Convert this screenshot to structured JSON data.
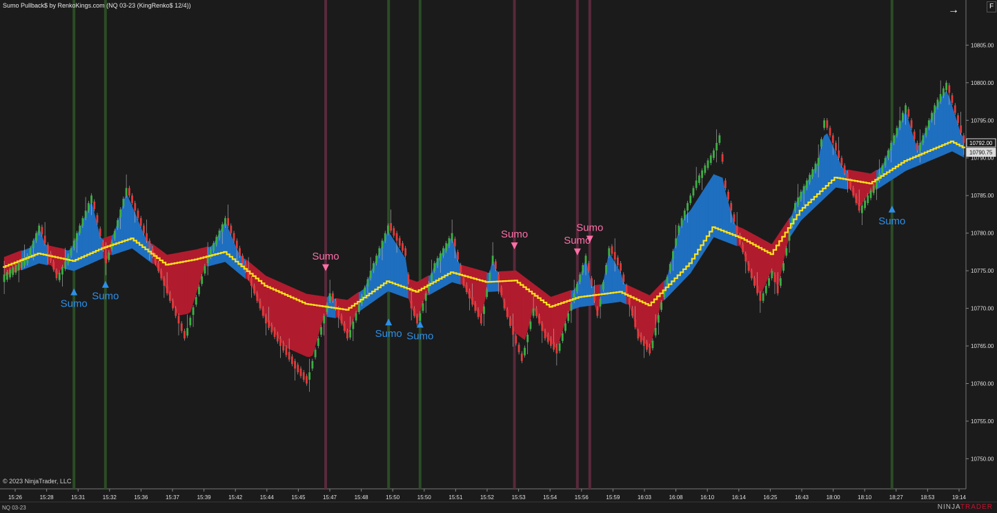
{
  "header": {
    "title": "Sumo Pullback$ by RenkoKings.com (NQ 03-23 (KingRenko$ 12/4))",
    "fullscreen_label": "F",
    "nav_icon": "arrow-right-icon"
  },
  "footer": {
    "copyright": "© 2023 NinjaTrader, LLC",
    "instrument_tab": "NQ 03-23",
    "brand_prefix": "NINJA",
    "brand_suffix": "TRADER"
  },
  "colors": {
    "background": "#1b1b1b",
    "up_candle": "#3cb043",
    "down_candle": "#e23b3b",
    "wick": "#bfbfbf",
    "band_bull": "#1f6fc0",
    "band_bear": "#b01c2e",
    "midline": "#ffe21a",
    "signal_buy": "#2d8fe8",
    "signal_sell": "#ff6ea8",
    "vline_green": "#2c4f26",
    "vline_red": "#5c2a3d",
    "last_price_box": "#d9d9d9"
  },
  "chart_data": {
    "type": "candlestick",
    "xlabel": "",
    "ylabel": "",
    "ylim": [
      10746,
      10811
    ],
    "y_ticks": [
      "10805.00",
      "10800.00",
      "10795.00",
      "10790.00",
      "10785.00",
      "10780.00",
      "10775.00",
      "10770.00",
      "10765.00",
      "10760.00",
      "10755.00",
      "10750.00"
    ],
    "y_tick_values": [
      10805,
      10800,
      10795,
      10790,
      10785,
      10780,
      10775,
      10770,
      10765,
      10760,
      10755,
      10750
    ],
    "x_ticks": [
      "15:26",
      "15:28",
      "15:31",
      "15:32",
      "15:36",
      "15:37",
      "15:39",
      "15:42",
      "15:44",
      "15:45",
      "15:47",
      "15:48",
      "15:50",
      "15:50",
      "15:51",
      "15:52",
      "15:53",
      "15:54",
      "15:56",
      "15:59",
      "16:03",
      "16:08",
      "16:10",
      "16:14",
      "16:25",
      "16:43",
      "18:00",
      "18:10",
      "18:27",
      "18:53",
      "19:14"
    ],
    "price_anchors": [
      [
        0,
        10774.5
      ],
      [
        8,
        10777
      ],
      [
        12,
        10781
      ],
      [
        18,
        10774
      ],
      [
        22,
        10777
      ],
      [
        30,
        10785
      ],
      [
        35,
        10776
      ],
      [
        42,
        10786
      ],
      [
        50,
        10778
      ],
      [
        58,
        10770
      ],
      [
        62,
        10766
      ],
      [
        70,
        10777
      ],
      [
        76,
        10782
      ],
      [
        82,
        10776
      ],
      [
        90,
        10768
      ],
      [
        100,
        10762
      ],
      [
        104,
        10760
      ],
      [
        112,
        10772
      ],
      [
        118,
        10766
      ],
      [
        126,
        10775
      ],
      [
        132,
        10781
      ],
      [
        138,
        10777
      ],
      [
        140,
        10770
      ],
      [
        142,
        10768
      ],
      [
        148,
        10776
      ],
      [
        154,
        10780
      ],
      [
        158,
        10773
      ],
      [
        164,
        10768
      ],
      [
        168,
        10777
      ],
      [
        172,
        10770
      ],
      [
        178,
        10763
      ],
      [
        182,
        10770
      ],
      [
        186,
        10766
      ],
      [
        190,
        10764
      ],
      [
        196,
        10772
      ],
      [
        200,
        10777
      ],
      [
        204,
        10769
      ],
      [
        208,
        10778
      ],
      [
        212,
        10775
      ],
      [
        218,
        10766
      ],
      [
        222,
        10764
      ],
      [
        232,
        10781
      ],
      [
        238,
        10787
      ],
      [
        244,
        10791
      ],
      [
        246,
        10793
      ],
      [
        248,
        10786
      ],
      [
        252,
        10780
      ],
      [
        256,
        10775
      ],
      [
        260,
        10771
      ],
      [
        264,
        10775
      ],
      [
        266,
        10772
      ],
      [
        272,
        10784
      ],
      [
        280,
        10790
      ],
      [
        282,
        10795
      ],
      [
        288,
        10789
      ],
      [
        294,
        10783
      ],
      [
        300,
        10787
      ],
      [
        306,
        10793
      ],
      [
        310,
        10797
      ],
      [
        314,
        10791
      ],
      [
        320,
        10797
      ],
      [
        324,
        10800
      ],
      [
        330,
        10792
      ]
    ],
    "midline_anchors": [
      [
        0,
        10775.5
      ],
      [
        12,
        10777.3
      ],
      [
        24,
        10776.3
      ],
      [
        34,
        10778
      ],
      [
        44,
        10779.3
      ],
      [
        56,
        10775.8
      ],
      [
        66,
        10776.5
      ],
      [
        76,
        10777.5
      ],
      [
        90,
        10773
      ],
      [
        104,
        10770.6
      ],
      [
        118,
        10769.8
      ],
      [
        132,
        10773.6
      ],
      [
        142,
        10772.2
      ],
      [
        154,
        10774.8
      ],
      [
        166,
        10773.5
      ],
      [
        176,
        10773.7
      ],
      [
        188,
        10770.2
      ],
      [
        198,
        10771.5
      ],
      [
        212,
        10772.2
      ],
      [
        222,
        10770.4
      ],
      [
        236,
        10776
      ],
      [
        244,
        10780.8
      ],
      [
        254,
        10779.3
      ],
      [
        264,
        10777.2
      ],
      [
        274,
        10783
      ],
      [
        286,
        10787.4
      ],
      [
        298,
        10786.6
      ],
      [
        310,
        10789.6
      ],
      [
        326,
        10792.2
      ],
      [
        330,
        10791.4
      ]
    ],
    "signals": [
      {
        "type": "buy",
        "label": "Sumo",
        "x": "15:31",
        "price": 10772.2
      },
      {
        "type": "buy",
        "label": "Sumo",
        "x": "15:32",
        "price": 10773.2
      },
      {
        "type": "sell",
        "label": "Sumo",
        "x": "15:47",
        "price": 10775.4
      },
      {
        "type": "buy",
        "label": "Sumo",
        "x": "15:50",
        "price": 10768.2
      },
      {
        "type": "buy",
        "label": "Sumo",
        "x": "15:50",
        "price": 10767.9
      },
      {
        "type": "sell",
        "label": "Sumo",
        "x": "15:53",
        "price": 10778.3
      },
      {
        "type": "sell",
        "label": "Sumo",
        "x": "15:56",
        "price": 10777.5
      },
      {
        "type": "sell",
        "label": "Sumo",
        "x": "15:56",
        "price": 10779.2
      },
      {
        "type": "buy",
        "label": "Sumo",
        "x": "18:27",
        "price": 10783.2
      }
    ],
    "vertical_lines": [
      {
        "color": "green",
        "at": "15:31"
      },
      {
        "color": "green",
        "at": "15:32"
      },
      {
        "color": "red",
        "at": "15:47"
      },
      {
        "color": "green",
        "at": "15:50"
      },
      {
        "color": "green",
        "at": "15:50"
      },
      {
        "color": "red",
        "at": "15:53"
      },
      {
        "color": "red",
        "at": "15:56"
      },
      {
        "color": "red",
        "at": "15:56"
      },
      {
        "color": "green",
        "at": "18:27"
      }
    ],
    "last_price": "10792.00",
    "indicator_price": "10790.75",
    "grid": false
  }
}
